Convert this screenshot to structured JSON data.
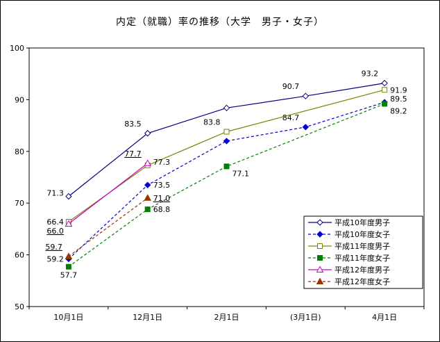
{
  "chart_data": {
    "type": "line",
    "title": "内定（就職）率の推移（大学　男子・女子）",
    "categories": [
      "10月1日",
      "12月1日",
      "2月1日",
      "(3月1日)",
      "4月1日"
    ],
    "ylim": [
      50,
      100
    ],
    "yticks": [
      50,
      60,
      70,
      80,
      90,
      100
    ],
    "grid": false,
    "legend_position": "inside-bottom-right",
    "series": [
      {
        "name": "平成10年度男子",
        "color": "#000080",
        "line_style": "solid",
        "marker": "diamond",
        "marker_fill": "open",
        "values": [
          71.3,
          83.5,
          88.4,
          90.7,
          93.2
        ],
        "point_labels": [
          "71.3",
          "83.5",
          "",
          "90.7",
          "93.2"
        ],
        "label_side": [
          "left-up",
          "above-left",
          "",
          "above-left",
          "above-left"
        ],
        "label_underline": false
      },
      {
        "name": "平成10年度女子",
        "color": "#0000CC",
        "line_style": "dashed",
        "marker": "diamond",
        "marker_fill": "filled",
        "values": [
          59.2,
          73.5,
          82.0,
          84.7,
          89.5
        ],
        "point_labels": [
          "59.2",
          "73.5",
          "",
          "84.7",
          "89.5"
        ],
        "label_side": [
          "left",
          "right",
          "",
          "above-left",
          "right-up"
        ],
        "label_underline": false
      },
      {
        "name": "平成11年度男子",
        "color": "#808000",
        "line_style": "solid",
        "marker": "square",
        "marker_fill": "open",
        "values": [
          66.4,
          77.3,
          83.8,
          null,
          91.9
        ],
        "point_labels": [
          "66.4",
          "77.3",
          "83.8",
          "",
          "91.9"
        ],
        "label_side": [
          "left",
          "right-up",
          "above-left",
          "",
          "right"
        ],
        "label_underline": false
      },
      {
        "name": "平成11年度女子",
        "color": "#008000",
        "line_style": "dashed",
        "marker": "square",
        "marker_fill": "filled",
        "values": [
          57.7,
          68.8,
          77.1,
          null,
          89.2
        ],
        "point_labels": [
          "57.7",
          "68.8",
          "77.1",
          "",
          "89.2"
        ],
        "label_side": [
          "below",
          "right",
          "right-down",
          "",
          "right-down"
        ],
        "label_underline": false
      },
      {
        "name": "平成12年度男子",
        "color": "#CC00CC",
        "line_style": "solid",
        "marker": "triangle",
        "marker_fill": "open",
        "values": [
          66.0,
          77.7,
          null,
          null,
          null
        ],
        "point_labels": [
          "66.0",
          "77.7",
          "",
          "",
          ""
        ],
        "label_side": [
          "left-down",
          "above-left",
          "",
          "",
          ""
        ],
        "label_underline": true
      },
      {
        "name": "平成12年度女子",
        "color": "#993300",
        "line_style": "dashed",
        "marker": "triangle",
        "marker_fill": "filled",
        "values": [
          59.7,
          71.0,
          null,
          null,
          null
        ],
        "point_labels": [
          "59.7",
          "71.0",
          "",
          "",
          ""
        ],
        "label_side": [
          "above-left",
          "right",
          "",
          "",
          ""
        ],
        "label_underline": true
      }
    ]
  }
}
